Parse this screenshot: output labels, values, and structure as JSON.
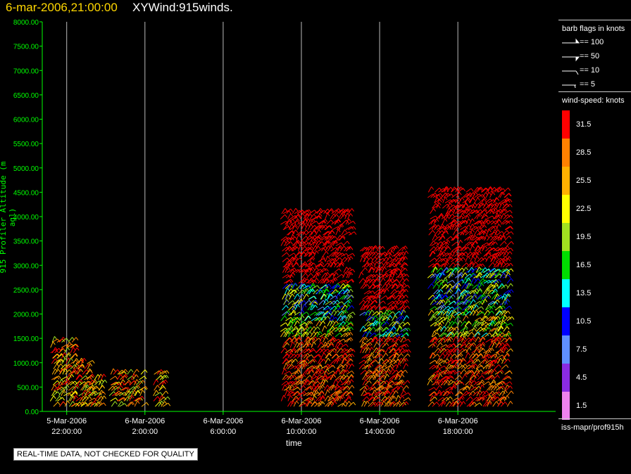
{
  "title": {
    "date": "6-mar-2006,21:00:00",
    "product": "XYWind:915winds."
  },
  "chart_data": {
    "type": "scatter",
    "title": "6-mar-2006,21:00:00  XYWind:915winds.",
    "xlabel": "time",
    "ylabel": "915 Profiler Altitude (m agl)",
    "xlim": [
      "2006-03-05 20:45",
      "2006-03-06 23:00"
    ],
    "ylim": [
      0,
      8000
    ],
    "grid": "vertical",
    "y_ticks": [
      "0.00",
      "500.00",
      "1000.00",
      "1500.00",
      "2000.00",
      "2500.00",
      "3000.00",
      "3500.00",
      "4000.00",
      "4500.00",
      "5000.00",
      "5500.00",
      "6000.00",
      "6500.00",
      "7000.00",
      "7500.00",
      "8000.00"
    ],
    "x_ticks": [
      {
        "date": "5-Mar-2006",
        "time": "22:00:00"
      },
      {
        "date": "6-Mar-2006",
        "time": "2:00:00"
      },
      {
        "date": "6-Mar-2006",
        "time": "6:00:00"
      },
      {
        "date": "6-Mar-2006",
        "time": "10:00:00"
      },
      {
        "date": "6-Mar-2006",
        "time": "14:00:00"
      },
      {
        "date": "6-Mar-2006",
        "time": "18:00:00"
      }
    ],
    "x_tick_hours": [
      22,
      26,
      30,
      34,
      38,
      42
    ],
    "series": [
      {
        "start_h": 21.2,
        "end_h": 22.3,
        "top_m": 1500,
        "profile": [
          [
            0,
            "mid"
          ],
          [
            500,
            "mid"
          ],
          [
            1000,
            "mid"
          ],
          [
            1500,
            "mid"
          ]
        ]
      },
      {
        "start_h": 22.3,
        "end_h": 23.2,
        "top_m": 1000
      },
      {
        "start_h": 23.1,
        "end_h": 23.8,
        "top_m": 700
      },
      {
        "start_h": 24.2,
        "end_h": 25.8,
        "top_m": 800
      },
      {
        "start_h": 26.4,
        "end_h": 27.0,
        "top_m": 800
      },
      {
        "start_h": 33.0,
        "end_h": 36.4,
        "top_m": 4100
      },
      {
        "start_h": 37.0,
        "end_h": 39.2,
        "top_m": 3300
      },
      {
        "start_h": 40.5,
        "end_h": 44.5,
        "top_m": 4600
      }
    ]
  },
  "legend": {
    "flags_title": "barb flags in knots",
    "flags": [
      "== 100",
      "== 50",
      "== 10",
      "== 5"
    ],
    "speed_title": "wind-speed: knots",
    "bins": [
      {
        "label": "31.5",
        "color": "#ff0000"
      },
      {
        "label": "28.5",
        "color": "#ff8000"
      },
      {
        "label": "25.5",
        "color": "#ffb000"
      },
      {
        "label": "22.5",
        "color": "#ffff00"
      },
      {
        "label": "19.5",
        "color": "#a0e020"
      },
      {
        "label": "16.5",
        "color": "#00dd00"
      },
      {
        "label": "13.5",
        "color": "#00ffff"
      },
      {
        "label": "10.5",
        "color": "#0000ff"
      },
      {
        "label": "7.5",
        "color": "#5f8fff"
      },
      {
        "label": "4.5",
        "color": "#8a2be2"
      },
      {
        "label": "1.5",
        "color": "#ee82ee"
      }
    ]
  },
  "source_label": "iss-mapr/prof915h",
  "quality_note": "REAL-TIME DATA, NOT CHECKED FOR QUALITY",
  "colors": {
    "axis": "#00ff00",
    "grid": "#bbbbbb",
    "title_date": "#ffd700"
  }
}
